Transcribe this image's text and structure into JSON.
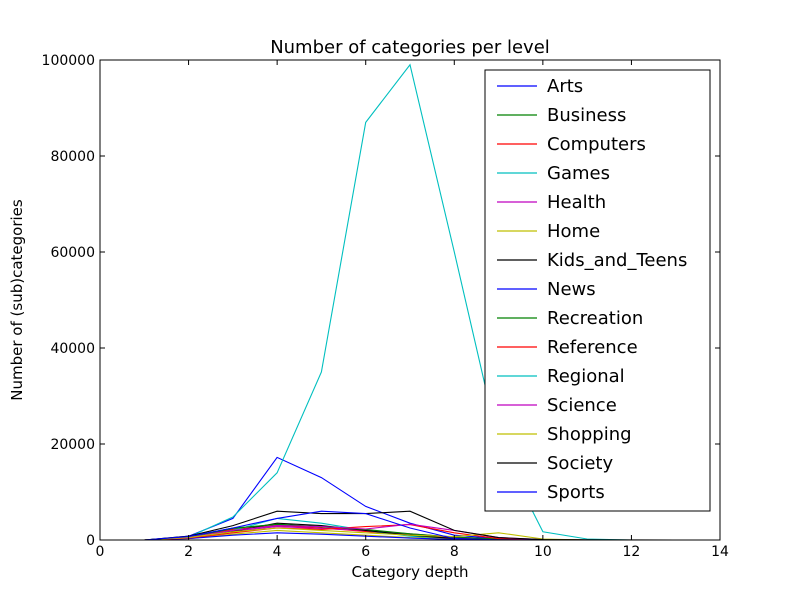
{
  "chart_data": {
    "type": "line",
    "title": "Number of categories per level",
    "xlabel": "Category depth",
    "ylabel": "Number of (sub)categories",
    "xlim": [
      0,
      14
    ],
    "ylim": [
      0,
      100000
    ],
    "xticks": [
      0,
      2,
      4,
      6,
      8,
      10,
      12,
      14
    ],
    "yticks": [
      0,
      20000,
      40000,
      60000,
      80000,
      100000
    ],
    "grid": false,
    "legend_position": "top-right",
    "x": [
      0,
      1,
      2,
      3,
      4,
      5,
      6,
      7,
      8,
      9,
      10,
      11,
      12,
      13
    ],
    "series": [
      {
        "name": "Arts",
        "color": "#0000ff",
        "values": [
          0,
          0,
          800,
          4500,
          17200,
          13000,
          7000,
          3500,
          1000,
          300,
          50,
          0,
          0,
          0
        ]
      },
      {
        "name": "Business",
        "color": "#008000",
        "values": [
          0,
          0,
          700,
          2500,
          3200,
          2800,
          2000,
          1200,
          500,
          150,
          30,
          0,
          0,
          0
        ]
      },
      {
        "name": "Computers",
        "color": "#ff0000",
        "values": [
          0,
          0,
          600,
          2200,
          3000,
          2500,
          1800,
          1000,
          400,
          100,
          20,
          0,
          0,
          0
        ]
      },
      {
        "name": "Games",
        "color": "#00bfbf",
        "values": [
          0,
          0,
          500,
          2000,
          4500,
          3500,
          2000,
          800,
          200,
          50,
          0,
          0,
          0,
          0
        ]
      },
      {
        "name": "Health",
        "color": "#bf00bf",
        "values": [
          0,
          0,
          500,
          1800,
          2800,
          2400,
          2000,
          1300,
          600,
          200,
          40,
          0,
          0,
          0
        ]
      },
      {
        "name": "Home",
        "color": "#bfbf00",
        "values": [
          0,
          0,
          300,
          1200,
          2000,
          1500,
          1000,
          500,
          200,
          50,
          0,
          0,
          0,
          0
        ]
      },
      {
        "name": "Kids_and_Teens",
        "color": "#000000",
        "values": [
          0,
          0,
          400,
          1800,
          3500,
          3000,
          2000,
          1000,
          300,
          80,
          10,
          0,
          0,
          0
        ]
      },
      {
        "name": "News",
        "color": "#0000ff",
        "values": [
          0,
          0,
          300,
          1000,
          1500,
          1200,
          800,
          400,
          100,
          20,
          0,
          0,
          0,
          0
        ]
      },
      {
        "name": "Recreation",
        "color": "#008000",
        "values": [
          0,
          0,
          600,
          2400,
          3300,
          2700,
          2200,
          1300,
          600,
          200,
          40,
          0,
          0,
          0
        ]
      },
      {
        "name": "Reference",
        "color": "#ff0000",
        "values": [
          0,
          0,
          400,
          1500,
          2500,
          2200,
          2800,
          3200,
          1500,
          300,
          40,
          0,
          0,
          0
        ]
      },
      {
        "name": "Regional",
        "color": "#00bfbf",
        "values": [
          0,
          0,
          600,
          4800,
          14000,
          35000,
          87000,
          99000,
          60000,
          20000,
          1700,
          200,
          0,
          0
        ]
      },
      {
        "name": "Science",
        "color": "#bf00bf",
        "values": [
          0,
          0,
          500,
          2000,
          3000,
          2800,
          2300,
          3300,
          2000,
          500,
          80,
          0,
          0,
          0
        ]
      },
      {
        "name": "Shopping",
        "color": "#bfbf00",
        "values": [
          0,
          0,
          500,
          1700,
          2500,
          2000,
          1500,
          1000,
          700,
          1500,
          200,
          0,
          0,
          0
        ]
      },
      {
        "name": "Society",
        "color": "#000000",
        "values": [
          0,
          0,
          800,
          3000,
          6000,
          5500,
          5500,
          6000,
          2000,
          500,
          100,
          50,
          20,
          0
        ]
      },
      {
        "name": "Sports",
        "color": "#0000ff",
        "values": [
          0,
          0,
          700,
          2500,
          4500,
          6000,
          5500,
          2500,
          300,
          50,
          0,
          0,
          0,
          0
        ]
      }
    ]
  }
}
